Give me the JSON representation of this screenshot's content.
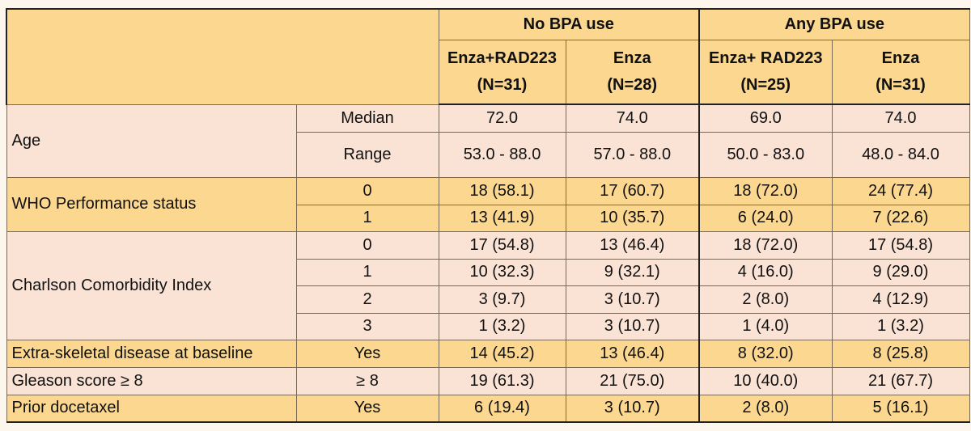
{
  "groups": [
    "No BPA use",
    "Any BPA use"
  ],
  "columns": [
    {
      "name": "Enza+RAD223",
      "n": "(N=31)"
    },
    {
      "name": "Enza",
      "n": "(N=28)"
    },
    {
      "name": "Enza+ RAD223",
      "n": "(N=25)"
    },
    {
      "name": "Enza",
      "n": "(N=31)"
    }
  ],
  "rows": [
    {
      "label": "Age",
      "cat": "Median",
      "values": [
        "72.0",
        "74.0",
        "69.0",
        "74.0"
      ]
    },
    {
      "label": "",
      "cat": "Range",
      "values": [
        "53.0 - 88.0",
        "57.0 - 88.0",
        "50.0 - 83.0",
        "48.0 - 84.0"
      ]
    },
    {
      "label": "WHO Performance status",
      "cat": "0",
      "values": [
        "18 (58.1)",
        "17 (60.7)",
        "18 (72.0)",
        "24 (77.4)"
      ]
    },
    {
      "label": "",
      "cat": "1",
      "values": [
        "13 (41.9)",
        "10 (35.7)",
        "6 (24.0)",
        "7 (22.6)"
      ]
    },
    {
      "label": "Charlson Comorbidity Index",
      "cat": "0",
      "values": [
        "17 (54.8)",
        "13 (46.4)",
        "18 (72.0)",
        "17 (54.8)"
      ]
    },
    {
      "label": "",
      "cat": "1",
      "values": [
        "10 (32.3)",
        "9 (32.1)",
        "4 (16.0)",
        "9 (29.0)"
      ]
    },
    {
      "label": "",
      "cat": "2",
      "values": [
        "3 (9.7)",
        "3 (10.7)",
        "2 (8.0)",
        "4 (12.9)"
      ]
    },
    {
      "label": "",
      "cat": "3",
      "values": [
        "1 (3.2)",
        "3 (10.7)",
        "1 (4.0)",
        "1 (3.2)"
      ]
    },
    {
      "label": "Extra-skeletal disease at baseline",
      "cat": "Yes",
      "values": [
        "14 (45.2)",
        "13 (46.4)",
        "8 (32.0)",
        "8 (25.8)"
      ]
    },
    {
      "label": "Gleason score ≥ 8",
      "cat": "≥ 8",
      "values": [
        "19 (61.3)",
        "21 (75.0)",
        "10 (40.0)",
        "21 (67.7)"
      ]
    },
    {
      "label": "Prior docetaxel",
      "cat": "Yes",
      "values": [
        "6 (19.4)",
        "3 (10.7)",
        "2 (8.0)",
        "5 (16.1)"
      ]
    }
  ],
  "colors": {
    "orange": "#fbd78f",
    "pink": "#fae3d5",
    "border": "#7a6a55"
  }
}
